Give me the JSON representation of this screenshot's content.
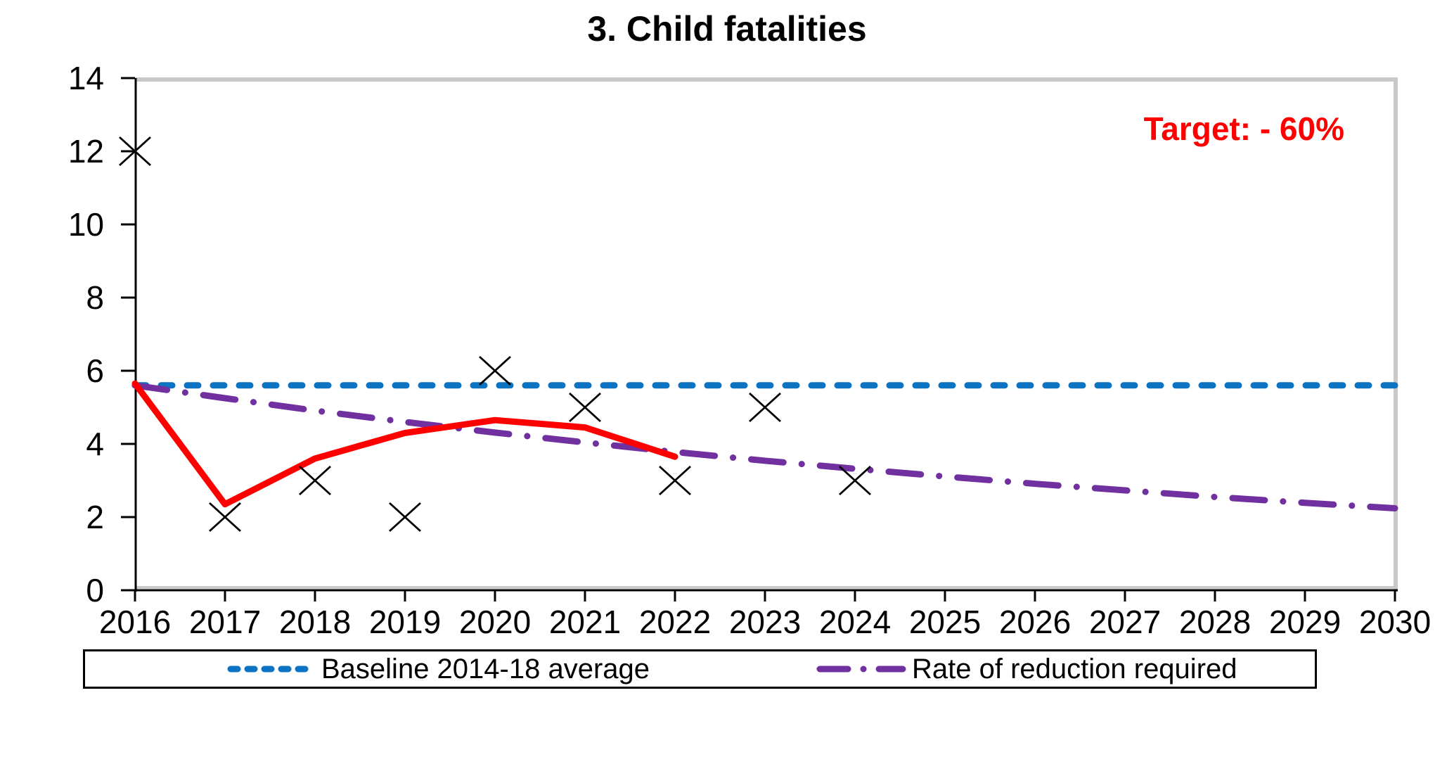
{
  "chart_data": {
    "type": "line",
    "title": "3. Child fatalities",
    "annotation": {
      "text": "Target: - 60%",
      "color": "#FF0000"
    },
    "xlim": [
      2016,
      2030
    ],
    "ylim": [
      0,
      14
    ],
    "grid": false,
    "x_years": [
      2016,
      2017,
      2018,
      2019,
      2020,
      2021,
      2022,
      2023,
      2024,
      2025,
      2026,
      2027,
      2028,
      2029,
      2030
    ],
    "y_ticks": [
      0,
      2,
      4,
      6,
      8,
      10,
      12,
      14
    ],
    "series": [
      {
        "id": "baseline",
        "legend_label": "Baseline 2014-18 average",
        "type": "line",
        "style": "dashed",
        "color": "#0C72C2",
        "x": [
          2016,
          2030
        ],
        "values": [
          5.6,
          5.6
        ]
      },
      {
        "id": "required-reduction",
        "legend_label": "Rate of reduction required",
        "type": "line",
        "style": "dashdot",
        "color": "#7030A0",
        "x": [
          2016,
          2017,
          2018,
          2019,
          2020,
          2021,
          2022,
          2023,
          2024,
          2025,
          2026,
          2027,
          2028,
          2029,
          2030
        ],
        "values": [
          5.6,
          5.25,
          4.91,
          4.6,
          4.31,
          4.04,
          3.78,
          3.54,
          3.32,
          3.11,
          2.91,
          2.73,
          2.55,
          2.39,
          2.24
        ]
      },
      {
        "id": "trend",
        "legend_label": null,
        "type": "line",
        "style": "solid",
        "color": "#FF0000",
        "x": [
          2016,
          2017,
          2018,
          2019,
          2020,
          2021,
          2022
        ],
        "values": [
          5.65,
          2.35,
          3.6,
          4.3,
          4.65,
          4.45,
          3.65
        ]
      },
      {
        "id": "annual-fatalities",
        "legend_label": null,
        "type": "scatter",
        "marker": "x",
        "color": "#000000",
        "x": [
          2016,
          2017,
          2018,
          2019,
          2020,
          2021,
          2022,
          2023,
          2024
        ],
        "values": [
          12,
          2,
          3,
          2,
          6,
          5,
          3,
          5,
          3
        ]
      }
    ],
    "legend": {
      "position": "bottom",
      "entries": [
        {
          "label": "Baseline 2014-18 average",
          "color": "#0C72C2",
          "style": "dashed"
        },
        {
          "label": "Rate of reduction required",
          "color": "#7030A0",
          "style": "dashdot"
        }
      ]
    }
  }
}
